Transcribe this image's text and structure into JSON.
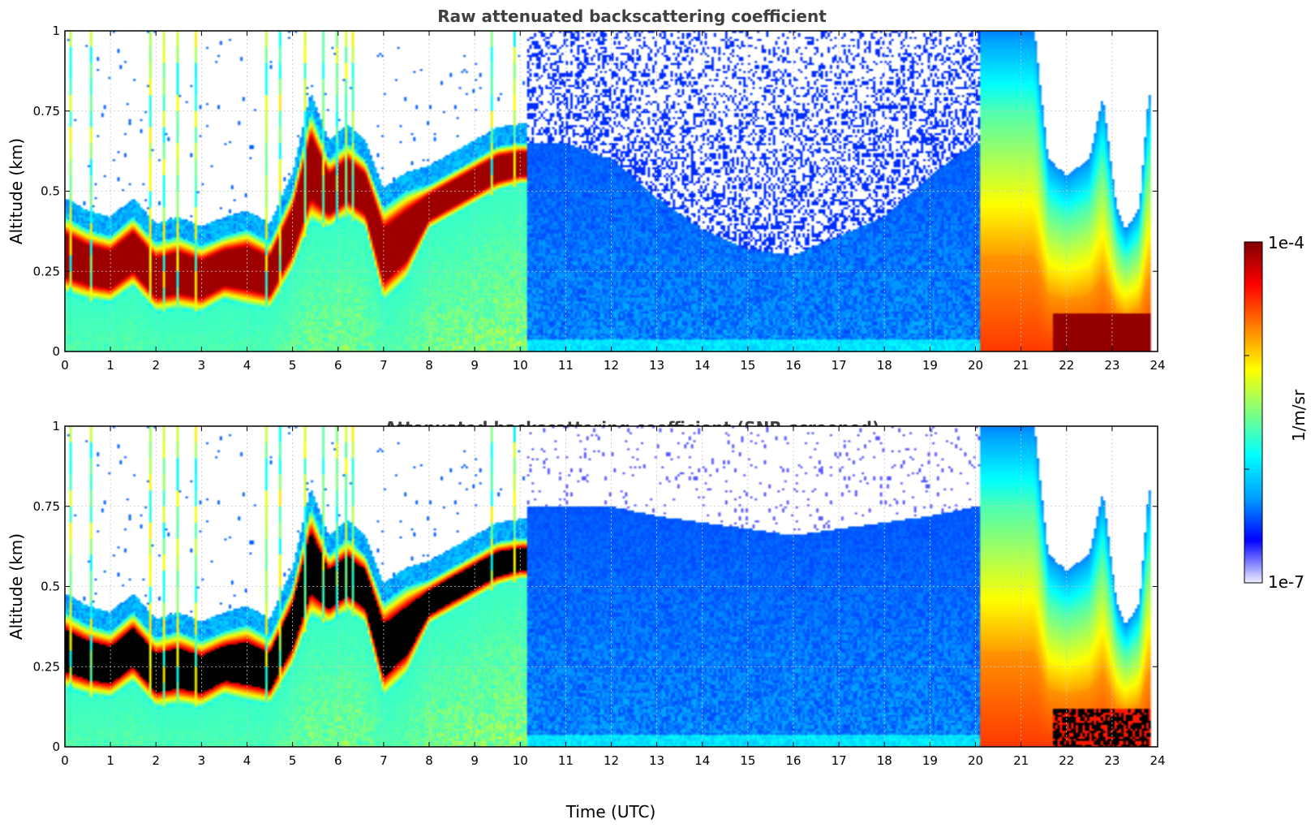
{
  "chart_data": [
    {
      "type": "heatmap",
      "title": "Raw attenuated backscattering coefficient",
      "xlabel": "",
      "ylabel": "Altitude (km)",
      "xlim": [
        0,
        24
      ],
      "ylim": [
        0,
        1
      ],
      "x_ticks": [
        "0",
        "1",
        "2",
        "3",
        "4",
        "5",
        "6",
        "7",
        "8",
        "9",
        "10",
        "11",
        "12",
        "13",
        "14",
        "15",
        "16",
        "17",
        "18",
        "19",
        "20",
        "21",
        "22",
        "23",
        "24"
      ],
      "y_ticks": [
        "0",
        "0.25",
        "0.5",
        "0.75",
        "1"
      ],
      "grid": true,
      "layer_top_km": [
        [
          0,
          0.42
        ],
        [
          0.5,
          0.38
        ],
        [
          1,
          0.36
        ],
        [
          1.5,
          0.42
        ],
        [
          2,
          0.34
        ],
        [
          2.5,
          0.36
        ],
        [
          3,
          0.33
        ],
        [
          3.5,
          0.36
        ],
        [
          4,
          0.38
        ],
        [
          4.5,
          0.34
        ],
        [
          5,
          0.5
        ],
        [
          5.4,
          0.75
        ],
        [
          5.8,
          0.6
        ],
        [
          6.2,
          0.65
        ],
        [
          6.6,
          0.6
        ],
        [
          7,
          0.45
        ],
        [
          7.5,
          0.5
        ],
        [
          8,
          0.52
        ],
        [
          8.5,
          0.56
        ],
        [
          9,
          0.6
        ],
        [
          9.5,
          0.64
        ],
        [
          10,
          0.65
        ]
      ],
      "layer_base_km": [
        [
          0,
          0.18
        ],
        [
          0.5,
          0.16
        ],
        [
          1,
          0.15
        ],
        [
          1.5,
          0.2
        ],
        [
          2,
          0.12
        ],
        [
          2.5,
          0.13
        ],
        [
          3,
          0.12
        ],
        [
          3.5,
          0.16
        ],
        [
          4,
          0.14
        ],
        [
          4.5,
          0.13
        ],
        [
          5,
          0.25
        ],
        [
          5.4,
          0.4
        ],
        [
          5.8,
          0.38
        ],
        [
          6.2,
          0.42
        ],
        [
          6.6,
          0.38
        ],
        [
          7,
          0.15
        ],
        [
          7.5,
          0.22
        ],
        [
          8,
          0.38
        ],
        [
          8.5,
          0.42
        ],
        [
          9,
          0.46
        ],
        [
          9.5,
          0.5
        ],
        [
          10,
          0.52
        ]
      ],
      "noise_boundary_km": [
        [
          10.2,
          0.65
        ],
        [
          11,
          0.65
        ],
        [
          12,
          0.6
        ],
        [
          13,
          0.48
        ],
        [
          14,
          0.38
        ],
        [
          15,
          0.32
        ],
        [
          16,
          0.3
        ],
        [
          17,
          0.36
        ],
        [
          18,
          0.42
        ],
        [
          19,
          0.55
        ],
        [
          20,
          0.65
        ]
      ],
      "evening_layer_top_km": [
        [
          20.2,
          1.0
        ],
        [
          21.3,
          1.0
        ],
        [
          21.6,
          0.6
        ],
        [
          22,
          0.55
        ],
        [
          22.5,
          0.6
        ],
        [
          22.8,
          0.8
        ],
        [
          23.1,
          0.45
        ],
        [
          23.3,
          0.38
        ],
        [
          23.6,
          0.45
        ],
        [
          23.8,
          0.8
        ]
      ]
    },
    {
      "type": "heatmap",
      "title": "Attenuated backscattering coefficient (SNR-screened)",
      "xlabel": "Time (UTC)",
      "ylabel": "Altitude (km)",
      "xlim": [
        0,
        24
      ],
      "ylim": [
        0,
        1
      ],
      "x_ticks": [
        "0",
        "1",
        "2",
        "3",
        "4",
        "5",
        "6",
        "7",
        "8",
        "9",
        "10",
        "11",
        "12",
        "13",
        "14",
        "15",
        "16",
        "17",
        "18",
        "19",
        "20",
        "21",
        "22",
        "23",
        "24"
      ],
      "y_ticks": [
        "0",
        "0.25",
        "0.5",
        "0.75",
        "1"
      ],
      "grid": true,
      "saturated_color": "#000000",
      "screen_boundary_km": [
        [
          10.2,
          0.75
        ],
        [
          11,
          0.75
        ],
        [
          12,
          0.75
        ],
        [
          13,
          0.72
        ],
        [
          14,
          0.7
        ],
        [
          15,
          0.68
        ],
        [
          16,
          0.66
        ],
        [
          17,
          0.68
        ],
        [
          18,
          0.7
        ],
        [
          19,
          0.72
        ],
        [
          20,
          0.75
        ]
      ]
    }
  ],
  "colorbar": {
    "label": "1/m/sr",
    "max_label": "1e-4",
    "min_label": "1e-7",
    "colormap": "jet",
    "scale": "log",
    "range": [
      1e-07,
      0.0001
    ]
  },
  "colors": {
    "title": "#404040",
    "grid": "#c8c8c8",
    "colormap_stops": [
      "#f0f0ff",
      "#0000ff",
      "#00a0ff",
      "#00ffff",
      "#80ff80",
      "#ffff00",
      "#ff8000",
      "#ff0000",
      "#800000"
    ]
  }
}
